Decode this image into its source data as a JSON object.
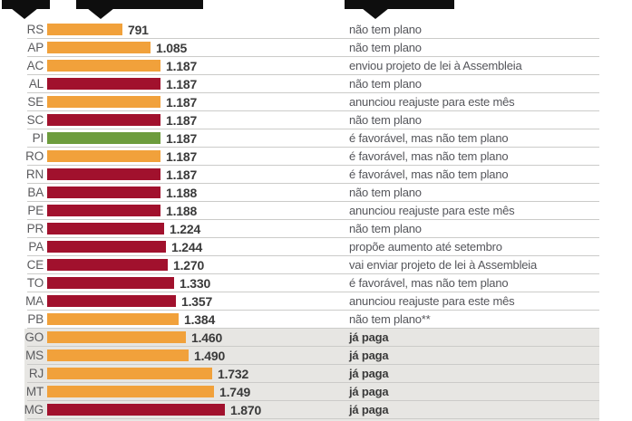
{
  "chart_data": {
    "type": "bar",
    "orientation": "horizontal",
    "title": "",
    "xlabel": "",
    "ylabel": "",
    "axis_max": 1870,
    "grid": "row-separators",
    "legend": "none",
    "colors": {
      "orange": "#f1a13b",
      "red": "#a1112d",
      "green": "#6d9c3d",
      "band": "#e7e6e3",
      "separator": "#cbcbc9",
      "header_black": "#0e0e0e"
    },
    "rows": [
      {
        "state": "RS",
        "value": 791,
        "value_label": "791",
        "color": "orange",
        "status": "não tem plano",
        "banded": false
      },
      {
        "state": "AP",
        "value": 1085,
        "value_label": "1.085",
        "color": "orange",
        "status": "não tem plano",
        "banded": false
      },
      {
        "state": "AC",
        "value": 1187,
        "value_label": "1.187",
        "color": "orange",
        "status": "enviou projeto de lei à Assembleia",
        "banded": false
      },
      {
        "state": "AL",
        "value": 1187,
        "value_label": "1.187",
        "color": "red",
        "status": "não tem plano",
        "banded": false
      },
      {
        "state": "SE",
        "value": 1187,
        "value_label": "1.187",
        "color": "orange",
        "status": "anunciou reajuste para este mês",
        "banded": false
      },
      {
        "state": "SC",
        "value": 1187,
        "value_label": "1.187",
        "color": "red",
        "status": "não tem plano",
        "banded": false
      },
      {
        "state": "PI",
        "value": 1187,
        "value_label": "1.187",
        "color": "green",
        "status": "é favorável, mas não tem plano",
        "banded": false
      },
      {
        "state": "RO",
        "value": 1187,
        "value_label": "1.187",
        "color": "orange",
        "status": "é favorável, mas não tem plano",
        "banded": false
      },
      {
        "state": "RN",
        "value": 1187,
        "value_label": "1.187",
        "color": "red",
        "status": "é favorável, mas não tem plano",
        "banded": false
      },
      {
        "state": "BA",
        "value": 1188,
        "value_label": "1.188",
        "color": "red",
        "status": "não tem plano",
        "banded": false
      },
      {
        "state": "PE",
        "value": 1188,
        "value_label": "1.188",
        "color": "red",
        "status": "anunciou reajuste para este mês",
        "banded": false
      },
      {
        "state": "PR",
        "value": 1224,
        "value_label": "1.224",
        "color": "red",
        "status": "não tem plano",
        "banded": false
      },
      {
        "state": "PA",
        "value": 1244,
        "value_label": "1.244",
        "color": "red",
        "status": "propõe aumento até setembro",
        "banded": false
      },
      {
        "state": "CE",
        "value": 1270,
        "value_label": "1.270",
        "color": "red",
        "status": "vai enviar projeto de lei à Assembleia",
        "banded": false
      },
      {
        "state": "TO",
        "value": 1330,
        "value_label": "1.330",
        "color": "red",
        "status": "é favorável, mas não tem plano",
        "banded": false
      },
      {
        "state": "MA",
        "value": 1357,
        "value_label": "1.357",
        "color": "red",
        "status": "anunciou reajuste para este mês",
        "banded": false
      },
      {
        "state": "PB",
        "value": 1384,
        "value_label": "1.384",
        "color": "orange",
        "status": "não tem plano**",
        "banded": false
      },
      {
        "state": "GO",
        "value": 1460,
        "value_label": "1.460",
        "color": "orange",
        "status": "já paga",
        "banded": true
      },
      {
        "state": "MS",
        "value": 1490,
        "value_label": "1.490",
        "color": "orange",
        "status": "já paga",
        "banded": true
      },
      {
        "state": "RJ",
        "value": 1732,
        "value_label": "1.732",
        "color": "orange",
        "status": "já paga",
        "banded": true
      },
      {
        "state": "MT",
        "value": 1749,
        "value_label": "1.749",
        "color": "orange",
        "status": "já paga",
        "banded": true
      },
      {
        "state": "MG",
        "value": 1870,
        "value_label": "1.870",
        "color": "red",
        "status": "já paga",
        "banded": true
      },
      {
        "state": "",
        "value": 1870,
        "value_label": "",
        "color": "red",
        "status": "já paga",
        "banded": true,
        "partial": true
      }
    ]
  },
  "header": {
    "note": "three black callout pointers, labels cropped out of frame",
    "pointer_count": 3
  }
}
